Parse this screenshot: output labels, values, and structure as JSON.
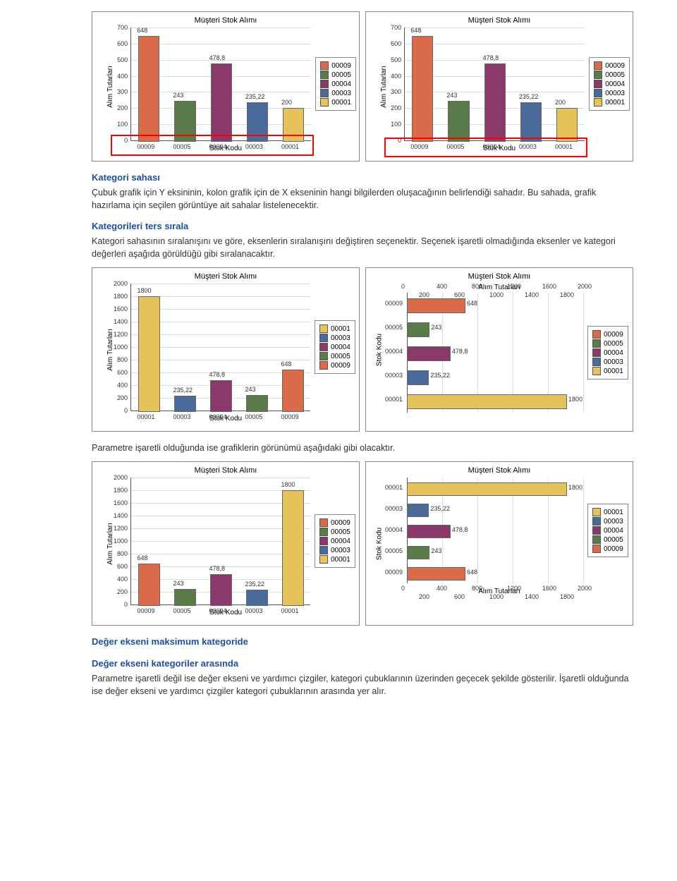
{
  "colors": {
    "c00009": "#d96b4a",
    "c00005": "#5b7a4a",
    "c00004": "#8a3a6a",
    "c00003": "#4a6a9a",
    "c00001": "#e6c25a",
    "grid": "#dddddd",
    "axis": "#555555",
    "heading": "#1e4ea0"
  },
  "legend_items": [
    {
      "label": "00009",
      "color": "#d96b4a"
    },
    {
      "label": "00005",
      "color": "#5b7a4a"
    },
    {
      "label": "00004",
      "color": "#8a3a6a"
    },
    {
      "label": "00003",
      "color": "#4a6a9a"
    },
    {
      "label": "00001",
      "color": "#e6c25a"
    }
  ],
  "legend_items_rev": [
    {
      "label": "00001",
      "color": "#e6c25a"
    },
    {
      "label": "00003",
      "color": "#4a6a9a"
    },
    {
      "label": "00004",
      "color": "#8a3a6a"
    },
    {
      "label": "00005",
      "color": "#5b7a4a"
    },
    {
      "label": "00009",
      "color": "#d96b4a"
    }
  ],
  "chart_labels": {
    "title": "Müşteri Stok Alımı",
    "ylabel": "Alım Tutarları",
    "xlabel": "Stok Kodu"
  },
  "row1": {
    "chartA": {
      "ymax": 700,
      "ytick_step": 100,
      "categories": [
        "00009",
        "00005",
        "00004",
        "00003",
        "00001"
      ],
      "values": [
        648,
        243,
        478.8,
        235.22,
        200
      ],
      "value_labels": [
        "648",
        "243",
        "478,8",
        "235,22",
        "200"
      ],
      "colors": [
        "#d96b4a",
        "#5b7a4a",
        "#8a3a6a",
        "#4a6a9a",
        "#e6c25a"
      ],
      "redbox": true
    },
    "chartB": {
      "ymax": 700,
      "ytick_step": 100,
      "categories": [
        "00009",
        "00005",
        "00004",
        "00003",
        "00001"
      ],
      "values": [
        648,
        243,
        478.8,
        235.22,
        200
      ],
      "value_labels": [
        "648",
        "243",
        "478,8",
        "235,22",
        "200"
      ],
      "colors": [
        "#d96b4a",
        "#5b7a4a",
        "#8a3a6a",
        "#4a6a9a",
        "#e6c25a"
      ],
      "redbox_bottom": true
    }
  },
  "row2": {
    "chartA": {
      "ymax": 2000,
      "ytick_step": 200,
      "categories": [
        "00001",
        "00003",
        "00004",
        "00005",
        "00009"
      ],
      "values": [
        1800,
        235.22,
        478.8,
        243,
        648
      ],
      "value_labels": [
        "1800",
        "235,22",
        "478,8",
        "243",
        "648"
      ],
      "colors": [
        "#e6c25a",
        "#4a6a9a",
        "#8a3a6a",
        "#5b7a4a",
        "#d96b4a"
      ]
    },
    "chartB": {
      "type": "hbar",
      "xmax": 2000,
      "xtick_major": [
        0,
        400,
        800,
        1200,
        1600,
        2000
      ],
      "xtick_minor": [
        200,
        600,
        1000,
        1400,
        1800
      ],
      "categories": [
        "00009",
        "00005",
        "00004",
        "00003",
        "00001"
      ],
      "values": [
        648,
        243,
        478.8,
        235.22,
        1800
      ],
      "value_labels": [
        "648",
        "243",
        "478,8",
        "235,22",
        "1800"
      ],
      "colors": [
        "#d96b4a",
        "#5b7a4a",
        "#8a3a6a",
        "#4a6a9a",
        "#e6c25a"
      ]
    }
  },
  "row3": {
    "chartA": {
      "ymax": 2000,
      "ytick_step": 200,
      "categories": [
        "00009",
        "00005",
        "00004",
        "00003",
        "00001"
      ],
      "values": [
        648,
        243,
        478.8,
        235.22,
        1800
      ],
      "value_labels": [
        "648",
        "243",
        "478,8",
        "235,22",
        "1800"
      ],
      "colors": [
        "#d96b4a",
        "#5b7a4a",
        "#8a3a6a",
        "#4a6a9a",
        "#e6c25a"
      ]
    },
    "chartB": {
      "type": "hbar",
      "xmax": 2000,
      "xtick_major": [
        0,
        400,
        800,
        1200,
        1600,
        2000
      ],
      "xtick_minor": [
        200,
        600,
        1000,
        1400,
        1800
      ],
      "categories": [
        "00001",
        "00003",
        "00004",
        "00005",
        "00009"
      ],
      "values": [
        1800,
        235.22,
        478.8,
        243,
        648
      ],
      "value_labels": [
        "1800",
        "235,22",
        "478,8",
        "243",
        "648"
      ],
      "colors": [
        "#e6c25a",
        "#4a6a9a",
        "#8a3a6a",
        "#5b7a4a",
        "#d96b4a"
      ]
    }
  },
  "text": {
    "h1": "Kategori sahası",
    "p1": "Çubuk grafik için Y eksininin, kolon grafik için de X ekseninin hangi bilgilerden oluşacağının belirlendiği sahadır. Bu sahada, grafik hazırlama için seçilen görüntüye ait sahalar listelenecektir.",
    "h2": "Kategorileri ters sırala",
    "p2": "Kategori sahasının sıralanışını ve  göre, eksenlerin sıralanışını değiştiren seçenektir. Seçenek işaretli olmadığında eksenler ve kategori değerleri aşağıda görüldüğü gibi sıralanacaktır.",
    "p3": "Parametre işaretli olduğunda ise grafiklerin görünümü aşağıdaki gibi olacaktır.",
    "h3": "Değer ekseni maksimum kategoride",
    "h4": "Değer ekseni kategoriler arasında",
    "p4": "Parametre işaretli değil ise değer ekseni ve yardımcı çizgiler, kategori çubuklarının üzerinden geçecek şekilde gösterilir. İşaretli olduğunda ise değer ekseni ve yardımcı çizgiler kategori çubuklarının arasında yer alır."
  }
}
